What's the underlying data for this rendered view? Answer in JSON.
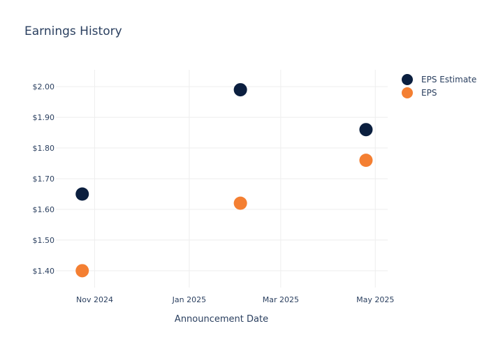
{
  "chart_data": {
    "type": "scatter",
    "title": "Earnings History",
    "xlabel": "Announcement Date",
    "ylabel": "",
    "x_ticks": [
      {
        "date": "2024-11-01",
        "label": "Nov 2024"
      },
      {
        "date": "2025-01-01",
        "label": "Jan 2025"
      },
      {
        "date": "2025-03-01",
        "label": "Mar 2025"
      },
      {
        "date": "2025-05-01",
        "label": "May 2025"
      }
    ],
    "y_ticks": [
      1.4,
      1.5,
      1.6,
      1.7,
      1.8,
      1.9,
      2.0
    ],
    "y_tick_format": "$0.00",
    "xlim": [
      "2024-10-07",
      "2025-05-09"
    ],
    "ylim": [
      1.345,
      2.055
    ],
    "grid": true,
    "legend_position": "top-right",
    "series": [
      {
        "name": "EPS Estimate",
        "color": "#0b1f3f",
        "points": [
          {
            "x": "2024-10-24",
            "y": 1.65
          },
          {
            "x": "2025-02-03",
            "y": 1.99
          },
          {
            "x": "2025-04-25",
            "y": 1.86
          }
        ]
      },
      {
        "name": "EPS",
        "color": "#f47f32",
        "points": [
          {
            "x": "2024-10-24",
            "y": 1.4
          },
          {
            "x": "2025-02-03",
            "y": 1.62
          },
          {
            "x": "2025-04-25",
            "y": 1.76
          }
        ]
      }
    ]
  }
}
